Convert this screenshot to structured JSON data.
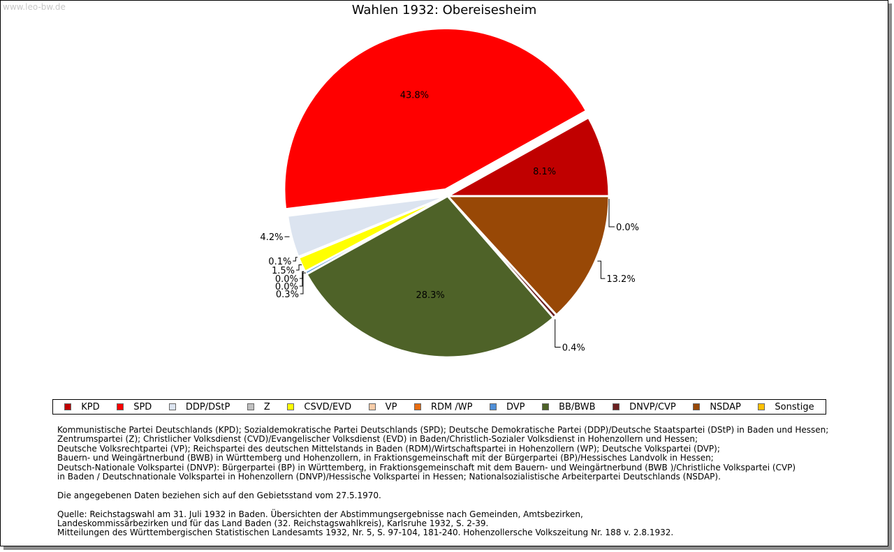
{
  "watermark": "www.leo-bw.de",
  "chart_data": {
    "type": "pie",
    "title": "Wahlen 1932: Obereisesheim",
    "slices": [
      {
        "name": "KPD",
        "value": 8.1,
        "label": "8.1%",
        "color": "#c00000"
      },
      {
        "name": "SPD",
        "value": 43.8,
        "label": "43.8%",
        "color": "#ff0000"
      },
      {
        "name": "DDP/DStP",
        "value": 4.2,
        "label": "4.2%",
        "color": "#dce4f0"
      },
      {
        "name": "Z",
        "value": 0.1,
        "label": "0.1%",
        "color": "#c0c0c0"
      },
      {
        "name": "CSVD/EVD",
        "value": 1.5,
        "label": "1.5%",
        "color": "#ffff00"
      },
      {
        "name": "VP",
        "value": 0.0,
        "label": "0.0%",
        "color": "#f8cca8"
      },
      {
        "name": "RDM /WP",
        "value": 0.0,
        "label": "0.0%",
        "color": "#e86c10"
      },
      {
        "name": "DVP",
        "value": 0.3,
        "label": "0.3%",
        "color": "#4f8fd8"
      },
      {
        "name": "BB/BWB",
        "value": 28.3,
        "label": "28.3%",
        "color": "#4e6228"
      },
      {
        "name": "DNVP/CVP",
        "value": 0.4,
        "label": "0.4%",
        "color": "#6b2020"
      },
      {
        "name": "NSDAP",
        "value": 13.2,
        "label": "13.2%",
        "color": "#984806"
      },
      {
        "name": "Sonstige",
        "value": 0.0,
        "label": "0.0%",
        "color": "#ffc000"
      }
    ],
    "legend_position": "bottom"
  },
  "notes": [
    "Kommunistische Partei Deutschlands (KPD); Sozialdemokratische Partei Deutschlands (SPD); Deutsche Demokratische Partei (DDP)/Deutsche Staatspartei (DStP) in Baden und Hessen;",
    "Zentrumspartei (Z); Christlicher Volksdienst (CVD)/Evangelischer Volksdienst (EVD) in Baden/Christlich-Sozialer Volksdienst in Hohenzollern und Hessen;",
    "Deutsche Volksrechtpartei (VP); Reichspartei des deutschen Mittelstands in Baden (RDM)/Wirtschaftspartei in Hohenzollern (WP); Deutsche Volkspartei (DVP);",
    "Bauern- und Weingärtnerbund (BWB) in Württemberg und Hohenzollern, in Fraktionsgemeinschaft mit der Bürgerpartei (BP)/Hessisches Landvolk in Hessen;",
    "Deutsch-Nationale Volkspartei (DNVP): Bürgerpartei (BP) in Württemberg, in Fraktionsgemeinschaft mit dem Bauern- und Weingärtnerbund (BWB )/Christliche Volkspartei (CVP)",
    "in Baden / Deutschnationale Volkspartei in Hohenzollern (DNVP)/Hessische Volkspartei in Hessen; Nationalsozialistische Arbeiterpartei Deutschlands (NSDAP).",
    "",
    "Die angegebenen Daten beziehen sich auf den Gebietsstand vom 27.5.1970.",
    "",
    "Quelle: Reichstagswahl am 31. Juli 1932 in Baden. Übersichten der Abstimmungsergebnisse nach Gemeinden, Amtsbezirken,",
    "Landeskommissärbezirken und für das Land Baden (32. Reichstagswahlkreis), Karlsruhe 1932, S. 2-39.",
    "Mitteilungen des Württembergischen Statistischen Landesamts 1932, Nr. 5, S. 97-104, 181-240. Hohenzollersche Volkszeitung Nr. 188 v. 2.8.1932."
  ]
}
